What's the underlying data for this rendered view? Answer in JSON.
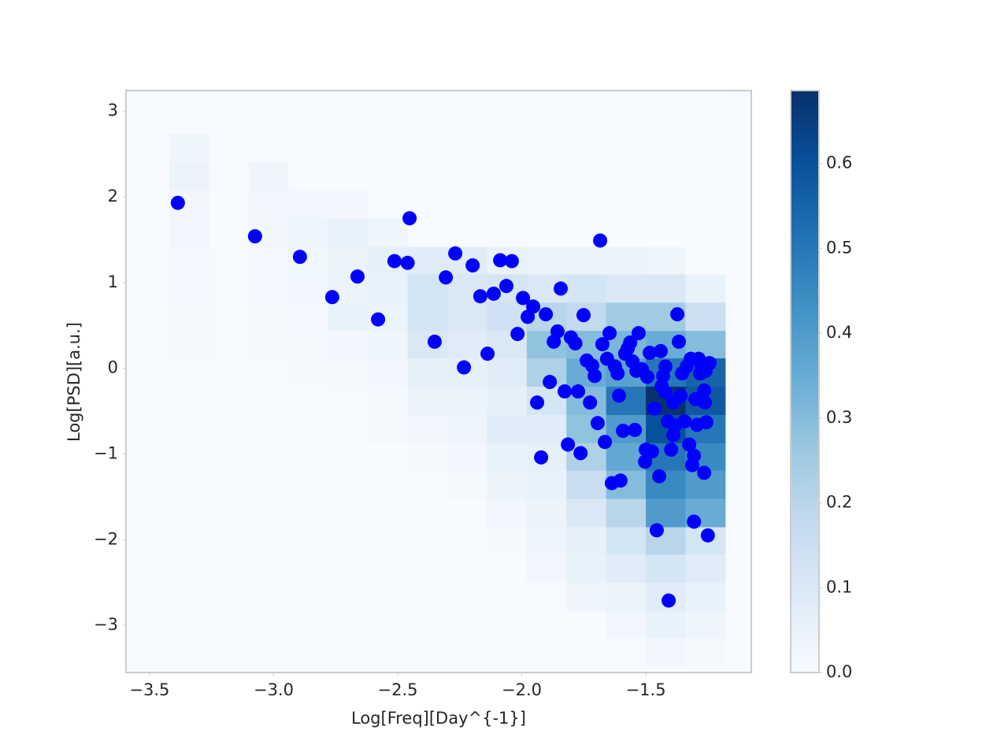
{
  "chart_data": {
    "type": "scatter",
    "xlabel": "Log[Freq][Day^{-1}]",
    "ylabel": "Log[PSD][a.u.]",
    "xlim": [
      -3.595,
      -1.075
    ],
    "ylim": [
      -3.55,
      3.24
    ],
    "xticks": [
      {
        "value": -3.5,
        "label": "−3.5"
      },
      {
        "value": -3.0,
        "label": "−3.0"
      },
      {
        "value": -2.5,
        "label": "−2.5"
      },
      {
        "value": -2.0,
        "label": "−2.0"
      },
      {
        "value": -1.5,
        "label": "−1.5"
      }
    ],
    "yticks": [
      {
        "value": -3,
        "label": "−3"
      },
      {
        "value": -2,
        "label": "−2"
      },
      {
        "value": -1,
        "label": "−1"
      },
      0,
      1,
      2,
      3
    ],
    "grid": false,
    "color": "#0000ff",
    "x": [
      -3.386,
      -3.075,
      -2.894,
      -2.764,
      -2.662,
      -2.579,
      -2.452,
      -2.513,
      -2.46,
      -2.351,
      -2.306,
      -2.268,
      -2.233,
      -2.198,
      -2.167,
      -2.138,
      -2.113,
      -2.087,
      -2.062,
      -2.04,
      -2.017,
      -1.995,
      -1.976,
      -1.954,
      -1.938,
      -1.922,
      -1.903,
      -1.887,
      -1.871,
      -1.856,
      -1.843,
      -1.827,
      -1.814,
      -1.802,
      -1.784,
      -1.773,
      -1.763,
      -1.751,
      -1.738,
      -1.725,
      -1.716,
      -1.706,
      -1.694,
      -1.684,
      -1.675,
      -1.665,
      -1.656,
      -1.646,
      -1.637,
      -1.624,
      -1.614,
      -1.608,
      -1.602,
      -1.592,
      -1.583,
      -1.573,
      -1.563,
      -1.554,
      -1.544,
      -1.538,
      -1.529,
      -1.516,
      -1.503,
      -1.494,
      -1.484,
      -1.475,
      -1.465,
      -1.456,
      -1.446,
      -1.44,
      -1.43,
      -1.421,
      -1.411,
      -1.408,
      -1.398,
      -1.389,
      -1.383,
      -1.373,
      -1.367,
      -1.36,
      -1.354,
      -1.344,
      -1.335,
      -1.325,
      -1.319,
      -1.313,
      -1.306,
      -1.3,
      -1.294,
      -1.287,
      -1.281,
      -1.275,
      -1.265,
      -1.262,
      -1.256,
      -1.306,
      -1.25,
      -1.265,
      -1.243,
      -1.259,
      -1.436,
      -1.421,
      -1.389,
      -1.5
    ],
    "y": [
      1.93,
      1.54,
      1.3,
      0.83,
      1.07,
      0.57,
      1.75,
      1.25,
      1.23,
      0.31,
      1.06,
      1.34,
      0.01,
      1.2,
      0.84,
      0.17,
      0.87,
      1.26,
      0.96,
      1.25,
      0.4,
      0.82,
      0.6,
      0.72,
      -0.4,
      -1.04,
      0.63,
      -0.16,
      0.31,
      0.43,
      0.93,
      -0.27,
      -0.89,
      0.36,
      0.29,
      -0.27,
      -0.99,
      0.62,
      0.09,
      -0.4,
      0.03,
      -0.09,
      -0.64,
      1.49,
      0.28,
      -0.86,
      0.11,
      0.41,
      -1.34,
      0.02,
      -0.06,
      -0.32,
      -1.31,
      -0.73,
      0.17,
      0.23,
      0.3,
      0.08,
      -0.72,
      -0.03,
      0.41,
      -0.01,
      -1.09,
      -0.1,
      0.18,
      -0.97,
      -0.47,
      -1.89,
      -1.26,
      0.2,
      -0.09,
      -0.28,
      -0.62,
      -2.71,
      -0.95,
      -0.78,
      -0.67,
      0.63,
      0.31,
      -0.32,
      -0.06,
      -0.62,
      0.02,
      -0.89,
      0.11,
      -1.13,
      -1.02,
      -0.36,
      -0.66,
      0.11,
      -0.06,
      0.03,
      -0.26,
      -0.4,
      -0.63,
      -1.79,
      -1.95,
      -1.22,
      0.06,
      -0.03,
      -0.21,
      0.02,
      -0.4,
      -0.95
    ],
    "heatmap": {
      "xbins": [
        -3.42,
        -3.26,
        -3.1,
        -2.94,
        -2.78,
        -2.62,
        -2.46,
        -2.3,
        -2.14,
        -1.98,
        -1.82,
        -1.66,
        -1.5,
        -1.34,
        -1.18
      ],
      "ybins": [
        -3.48,
        -3.15,
        -2.83,
        -2.5,
        -2.17,
        -1.85,
        -1.52,
        -1.19,
        -0.87,
        -0.54,
        -0.21,
        0.12,
        0.44,
        0.77,
        1.1,
        1.42,
        1.75,
        2.08,
        2.4,
        2.73
      ],
      "z": [
        [
          0,
          0,
          0,
          0,
          0,
          0,
          0,
          0,
          0,
          0,
          0,
          0,
          0.02,
          0.01
        ],
        [
          0,
          0,
          0,
          0,
          0,
          0,
          0,
          0,
          0,
          0,
          0,
          0.02,
          0.05,
          0.03
        ],
        [
          0,
          0,
          0,
          0,
          0,
          0,
          0,
          0,
          0,
          0,
          0.03,
          0.04,
          0.08,
          0.05
        ],
        [
          0,
          0,
          0,
          0,
          0,
          0,
          0,
          0,
          0,
          0.02,
          0.05,
          0.08,
          0.12,
          0.08
        ],
        [
          0,
          0,
          0,
          0,
          0,
          0,
          0,
          0,
          0.01,
          0.03,
          0.06,
          0.12,
          0.2,
          0.12
        ],
        [
          0,
          0,
          0,
          0,
          0,
          0,
          0,
          0,
          0.02,
          0.04,
          0.1,
          0.2,
          0.4,
          0.35
        ],
        [
          0,
          0,
          0,
          0,
          0,
          0,
          0,
          0.01,
          0.04,
          0.05,
          0.16,
          0.3,
          0.45,
          0.4
        ],
        [
          0,
          0,
          0,
          0,
          0,
          0,
          0.01,
          0.02,
          0.05,
          0.06,
          0.22,
          0.36,
          0.5,
          0.45
        ],
        [
          0,
          0,
          0,
          0,
          0,
          0.01,
          0.02,
          0.03,
          0.08,
          0.08,
          0.28,
          0.4,
          0.6,
          0.5
        ],
        [
          0,
          0,
          0,
          0,
          0.005,
          0.01,
          0.04,
          0.04,
          0.06,
          0.12,
          0.3,
          0.5,
          0.68,
          0.58
        ],
        [
          0,
          0.005,
          0.005,
          0.01,
          0.01,
          0.02,
          0.06,
          0.06,
          0.08,
          0.22,
          0.35,
          0.38,
          0.5,
          0.55
        ],
        [
          0.01,
          0.005,
          0.01,
          0.01,
          0.02,
          0.03,
          0.1,
          0.08,
          0.1,
          0.28,
          0.3,
          0.32,
          0.35,
          0.3
        ],
        [
          0.01,
          0.005,
          0.01,
          0.015,
          0.05,
          0.04,
          0.12,
          0.1,
          0.14,
          0.2,
          0.18,
          0.25,
          0.25,
          0.15
        ],
        [
          0.015,
          0.005,
          0.015,
          0.02,
          0.04,
          0.05,
          0.12,
          0.1,
          0.12,
          0.1,
          0.12,
          0.1,
          0.1,
          0.05
        ],
        [
          0.015,
          0.005,
          0.015,
          0.025,
          0.04,
          0.06,
          0.08,
          0.08,
          0.05,
          0.04,
          0.04,
          0.04,
          0.03,
          0
        ],
        [
          0.02,
          0,
          0.02,
          0.03,
          0.05,
          0.03,
          0,
          0,
          0,
          0,
          0,
          0,
          0,
          0
        ],
        [
          0.02,
          0,
          0.02,
          0.02,
          0.02,
          0,
          0,
          0,
          0,
          0,
          0,
          0,
          0,
          0
        ],
        [
          0.04,
          0,
          0.03,
          0,
          0,
          0,
          0,
          0,
          0,
          0,
          0,
          0,
          0,
          0
        ],
        [
          0.03,
          0,
          0,
          0,
          0,
          0,
          0,
          0,
          0,
          0,
          0,
          0,
          0,
          0
        ]
      ],
      "clim": [
        0,
        0.686
      ],
      "colormap": [
        "#f7fbff",
        "#deebf7",
        "#c6dbef",
        "#9ecae1",
        "#6baed6",
        "#4292c6",
        "#2171b5",
        "#08519c",
        "#08306b"
      ],
      "cbar_ticks": [
        {
          "value": 0,
          "label": "0.0"
        },
        0.1,
        0.2,
        0.3,
        0.4,
        0.5,
        0.6
      ]
    }
  }
}
